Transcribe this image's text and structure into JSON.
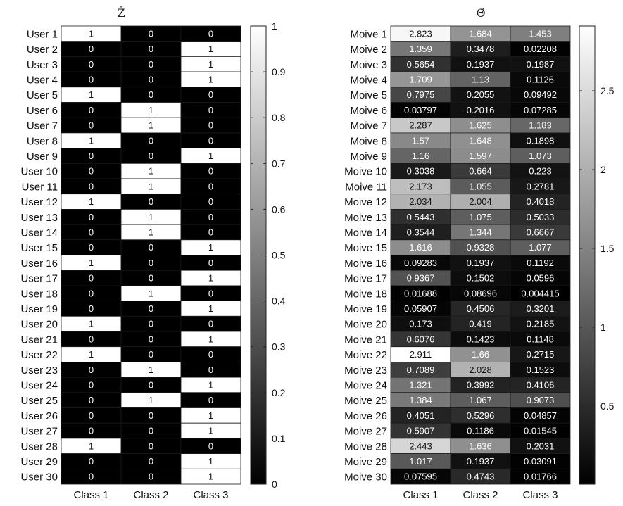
{
  "chart_data": [
    {
      "type": "heatmap",
      "title": "Ẑ",
      "title_latex": "\\hat{Z}",
      "columns": [
        "Class 1",
        "Class 2",
        "Class 3"
      ],
      "rows": [
        "User 1",
        "User 2",
        "User 3",
        "User 4",
        "User 5",
        "User 6",
        "User 7",
        "User 8",
        "User 9",
        "User 10",
        "User 11",
        "User 12",
        "User 13",
        "User 14",
        "User 15",
        "User 16",
        "User 17",
        "User 18",
        "User 19",
        "User 20",
        "User 21",
        "User 22",
        "User 23",
        "User 24",
        "User 25",
        "User 26",
        "User 27",
        "User 28",
        "User 29",
        "User 30"
      ],
      "values": [
        [
          "1",
          "0",
          "0"
        ],
        [
          "0",
          "0",
          "1"
        ],
        [
          "0",
          "0",
          "1"
        ],
        [
          "0",
          "0",
          "1"
        ],
        [
          "1",
          "0",
          "0"
        ],
        [
          "0",
          "1",
          "0"
        ],
        [
          "0",
          "1",
          "0"
        ],
        [
          "1",
          "0",
          "0"
        ],
        [
          "0",
          "0",
          "1"
        ],
        [
          "0",
          "1",
          "0"
        ],
        [
          "0",
          "1",
          "0"
        ],
        [
          "1",
          "0",
          "0"
        ],
        [
          "0",
          "1",
          "0"
        ],
        [
          "0",
          "1",
          "0"
        ],
        [
          "0",
          "0",
          "1"
        ],
        [
          "1",
          "0",
          "0"
        ],
        [
          "0",
          "0",
          "1"
        ],
        [
          "0",
          "1",
          "0"
        ],
        [
          "0",
          "0",
          "1"
        ],
        [
          "1",
          "0",
          "0"
        ],
        [
          "0",
          "0",
          "1"
        ],
        [
          "1",
          "0",
          "0"
        ],
        [
          "0",
          "1",
          "0"
        ],
        [
          "0",
          "0",
          "1"
        ],
        [
          "0",
          "1",
          "0"
        ],
        [
          "0",
          "0",
          "1"
        ],
        [
          "0",
          "0",
          "1"
        ],
        [
          "1",
          "0",
          "0"
        ],
        [
          "0",
          "0",
          "1"
        ],
        [
          "0",
          "0",
          "1"
        ]
      ],
      "colormap": "gray",
      "clim": [
        0,
        1
      ],
      "colorbar_ticks": [
        "0",
        "0.1",
        "0.2",
        "0.3",
        "0.4",
        "0.5",
        "0.6",
        "0.7",
        "0.8",
        "0.9",
        "1"
      ]
    },
    {
      "type": "heatmap",
      "title": "Θ̂",
      "title_latex": "\\hat{\\Theta}",
      "columns": [
        "Class 1",
        "Class 2",
        "Class 3"
      ],
      "rows": [
        "Moive 1",
        "Moive 2",
        "Moive 3",
        "Moive 4",
        "Moive 5",
        "Moive 6",
        "Moive 7",
        "Moive 8",
        "Moive 9",
        "Moive 10",
        "Moive 11",
        "Moive 12",
        "Moive 13",
        "Moive 14",
        "Moive 15",
        "Moive 16",
        "Moive 17",
        "Moive 18",
        "Moive 19",
        "Moive 20",
        "Moive 21",
        "Moive 22",
        "Moive 23",
        "Moive 24",
        "Moive 25",
        "Moive 26",
        "Moive 27",
        "Moive 28",
        "Moive 29",
        "Moive 30"
      ],
      "values": [
        [
          "2.823",
          "1.684",
          "1.453"
        ],
        [
          "1.359",
          "0.3478",
          "0.02208"
        ],
        [
          "0.5654",
          "0.1937",
          "0.1987"
        ],
        [
          "1.709",
          "1.13",
          "0.1126"
        ],
        [
          "0.7975",
          "0.2055",
          "0.09492"
        ],
        [
          "0.03797",
          "0.2016",
          "0.07285"
        ],
        [
          "2.287",
          "1.625",
          "1.183"
        ],
        [
          "1.57",
          "1.648",
          "0.1898"
        ],
        [
          "1.16",
          "1.597",
          "1.073"
        ],
        [
          "0.3038",
          "0.664",
          "0.223"
        ],
        [
          "2.173",
          "1.055",
          "0.2781"
        ],
        [
          "2.034",
          "2.004",
          "0.4018"
        ],
        [
          "0.5443",
          "1.075",
          "0.5033"
        ],
        [
          "0.3544",
          "1.344",
          "0.6667"
        ],
        [
          "1.616",
          "0.9328",
          "1.077"
        ],
        [
          "0.09283",
          "0.1937",
          "0.1192"
        ],
        [
          "0.9367",
          "0.1502",
          "0.0596"
        ],
        [
          "0.01688",
          "0.08696",
          "0.004415"
        ],
        [
          "0.05907",
          "0.4506",
          "0.3201"
        ],
        [
          "0.173",
          "0.419",
          "0.2185"
        ],
        [
          "0.6076",
          "0.1423",
          "0.1148"
        ],
        [
          "2.911",
          "1.66",
          "0.2715"
        ],
        [
          "0.7089",
          "2.028",
          "0.1523"
        ],
        [
          "1.321",
          "0.3992",
          "0.4106"
        ],
        [
          "1.384",
          "1.067",
          "0.9073"
        ],
        [
          "0.4051",
          "0.5296",
          "0.04857"
        ],
        [
          "0.5907",
          "0.1186",
          "0.01545"
        ],
        [
          "2.443",
          "1.636",
          "0.2031"
        ],
        [
          "1.017",
          "0.1937",
          "0.03091"
        ],
        [
          "0.07595",
          "0.4743",
          "0.01766"
        ]
      ],
      "colormap": "gray",
      "clim": [
        0.004415,
        2.911
      ],
      "colorbar_ticks": [
        "0.5",
        "1",
        "1.5",
        "2",
        "2.5"
      ]
    }
  ]
}
